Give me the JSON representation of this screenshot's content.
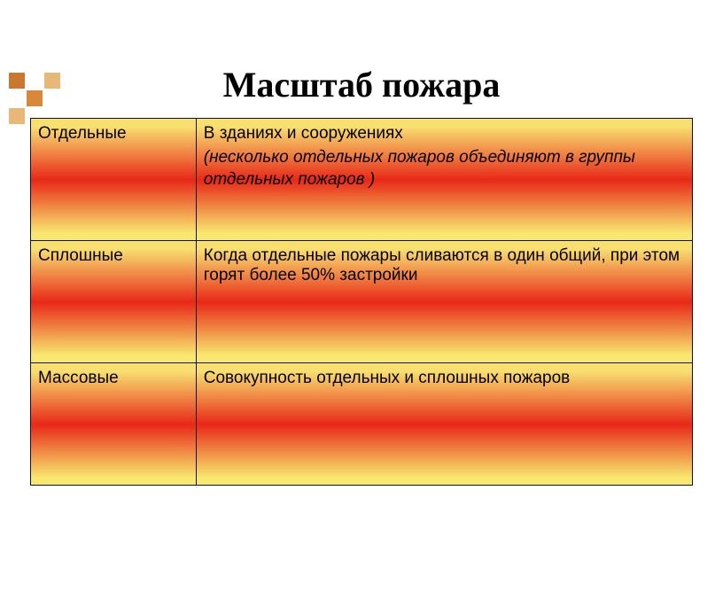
{
  "title": "Масштаб пожара",
  "gradient": {
    "top": "#f8e070",
    "mid": "#e82818",
    "bot": "#f8e870"
  },
  "deco_colors": {
    "dark": "#c87830",
    "mid": "#e8b878",
    "full": "#d88838"
  },
  "rows": [
    {
      "label": "Отдельные",
      "desc": "В зданиях и сооружениях",
      "desc_italic": "(несколько отдельных пожаров объединяют в группы отдельных пожаров )"
    },
    {
      "label": "Сплошные",
      "desc": "Когда отдельные пожары сливаются в один общий, при этом горят более 50% застройки",
      "desc_italic": ""
    },
    {
      "label": "Массовые",
      "desc": "Совокупность отдельных и сплошных пожаров",
      "desc_italic": ""
    }
  ]
}
